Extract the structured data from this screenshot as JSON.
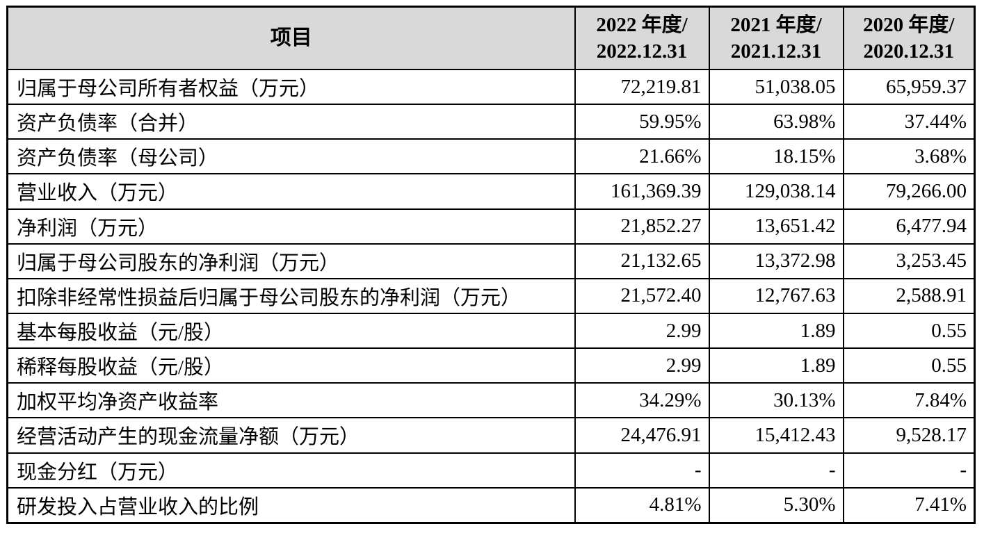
{
  "header": {
    "item_label": "项目",
    "columns": [
      {
        "line1": "2022 年度/",
        "line2": "2022.12.31"
      },
      {
        "line1": "2021 年度/",
        "line2": "2021.12.31"
      },
      {
        "line1": "2020 年度/",
        "line2": "2020.12.31"
      }
    ]
  },
  "rows": [
    {
      "label": "归属于母公司所有者权益（万元）",
      "v2022": "72,219.81",
      "v2021": "51,038.05",
      "v2020": "65,959.37"
    },
    {
      "label": "资产负债率（合并）",
      "v2022": "59.95%",
      "v2021": "63.98%",
      "v2020": "37.44%"
    },
    {
      "label": "资产负债率（母公司）",
      "v2022": "21.66%",
      "v2021": "18.15%",
      "v2020": "3.68%"
    },
    {
      "label": "营业收入（万元）",
      "v2022": "161,369.39",
      "v2021": "129,038.14",
      "v2020": "79,266.00"
    },
    {
      "label": "净利润（万元）",
      "v2022": "21,852.27",
      "v2021": "13,651.42",
      "v2020": "6,477.94"
    },
    {
      "label": "归属于母公司股东的净利润（万元）",
      "v2022": "21,132.65",
      "v2021": "13,372.98",
      "v2020": "3,253.45"
    },
    {
      "label": "扣除非经常性损益后归属于母公司股东的净利润（万元）",
      "v2022": "21,572.40",
      "v2021": "12,767.63",
      "v2020": "2,588.91"
    },
    {
      "label": "基本每股收益（元/股）",
      "v2022": "2.99",
      "v2021": "1.89",
      "v2020": "0.55"
    },
    {
      "label": "稀释每股收益（元/股）",
      "v2022": "2.99",
      "v2021": "1.89",
      "v2020": "0.55"
    },
    {
      "label": "加权平均净资产收益率",
      "v2022": "34.29%",
      "v2021": "30.13%",
      "v2020": "7.84%"
    },
    {
      "label": "经营活动产生的现金流量净额（万元）",
      "v2022": "24,476.91",
      "v2021": "15,412.43",
      "v2020": "9,528.17"
    },
    {
      "label": "现金分红（万元）",
      "v2022": "-",
      "v2021": "-",
      "v2020": "-"
    },
    {
      "label": "研发投入占营业收入的比例",
      "v2022": "4.81%",
      "v2021": "5.30%",
      "v2020": "7.41%"
    }
  ]
}
